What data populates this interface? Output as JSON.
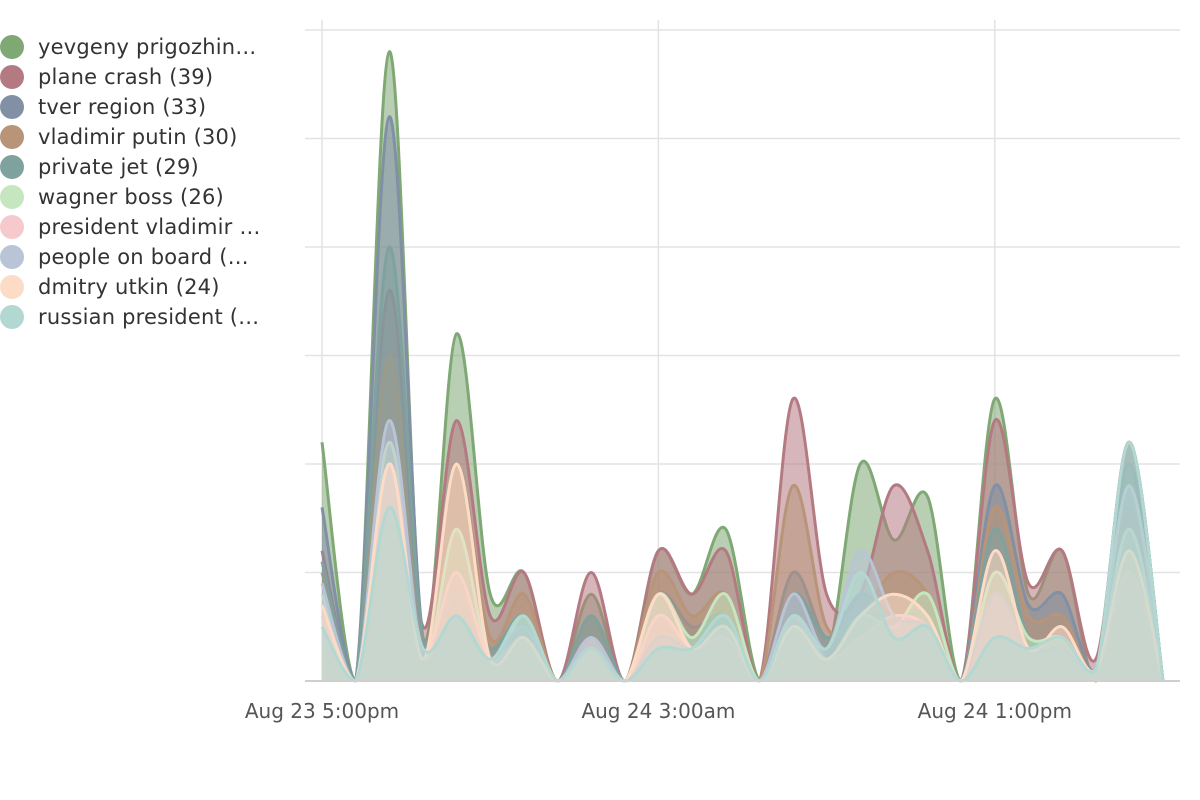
{
  "colors": {
    "grid": "#e3e3e3",
    "axis": "#cfcfcf",
    "text": "#333333",
    "tick_text": "#555555"
  },
  "chart_data": {
    "type": "area",
    "title": "",
    "xlabel": "",
    "ylabel": "",
    "x_tick_labels": [
      "Aug 23 5:00pm",
      "Aug 24 3:00am",
      "Aug 24 1:00pm"
    ],
    "x_tick_positions": [
      0,
      10,
      20
    ],
    "ylim": [
      0,
      6
    ],
    "grid": true,
    "legend_position": "left",
    "series": [
      {
        "name": "yevgeny prigozhin…",
        "color": "#7fa874",
        "values": [
          2.2,
          0,
          5.8,
          0.4,
          3.2,
          0.8,
          1.0,
          0,
          0.8,
          0,
          1.2,
          0.8,
          1.4,
          0,
          0.6,
          0.2,
          2.0,
          1.3,
          1.7,
          0,
          2.6,
          0.8,
          1.2,
          0,
          2.2,
          0
        ]
      },
      {
        "name": "plane crash (39)",
        "color": "#b47a82",
        "values": [
          1.2,
          0,
          3.6,
          0.5,
          2.4,
          0.6,
          1.0,
          0,
          1.0,
          0,
          1.2,
          0.8,
          1.2,
          0,
          2.6,
          0.8,
          0.8,
          1.8,
          1.2,
          0,
          2.4,
          0.9,
          1.2,
          0.2,
          2.2,
          0
        ]
      },
      {
        "name": "tver region (33)",
        "color": "#8190a4",
        "values": [
          1.6,
          0,
          5.2,
          0.4,
          1.0,
          0.3,
          0.6,
          0,
          0.6,
          0,
          0.8,
          0.5,
          0.6,
          0,
          1.0,
          0.4,
          0.8,
          0.6,
          0.6,
          0,
          1.8,
          0.7,
          0.8,
          0.1,
          2.0,
          0
        ]
      },
      {
        "name": "vladimir putin (30)",
        "color": "#b89478",
        "values": [
          1.0,
          0,
          3.0,
          0.3,
          2.0,
          0.4,
          0.8,
          0,
          0.6,
          0,
          1.0,
          0.6,
          0.8,
          0,
          1.8,
          0.5,
          0.6,
          1.0,
          0.8,
          0,
          1.6,
          0.6,
          0.6,
          0.1,
          1.6,
          0
        ]
      },
      {
        "name": "private jet (29)",
        "color": "#7fa29e",
        "values": [
          1.1,
          0,
          4.0,
          0.4,
          0.8,
          0.3,
          0.6,
          0,
          0.6,
          0,
          0.4,
          0.4,
          0.6,
          0,
          0.8,
          0.4,
          0.6,
          0.6,
          0.6,
          0,
          1.4,
          0.4,
          0.4,
          0.1,
          2.2,
          0
        ]
      },
      {
        "name": "wagner boss (26)",
        "color": "#c6e6c0",
        "values": [
          0.8,
          0,
          2.2,
          0.2,
          1.4,
          0.2,
          0.6,
          0,
          0.4,
          0,
          0.8,
          0.4,
          0.8,
          0,
          0.6,
          0.2,
          0.6,
          0.5,
          0.8,
          0,
          1.0,
          0.4,
          0.4,
          0.1,
          1.4,
          0
        ]
      },
      {
        "name": "president vladimir …",
        "color": "#f6c9cc",
        "values": [
          0.6,
          0,
          2.0,
          0.3,
          1.0,
          0.2,
          0.4,
          0,
          0.4,
          0,
          0.6,
          0.3,
          0.4,
          0,
          0.6,
          0.2,
          0.4,
          0.6,
          0.5,
          0,
          0.8,
          0.3,
          0.4,
          0.1,
          1.0,
          0
        ]
      },
      {
        "name": "people on board (…",
        "color": "#b9c4d6",
        "values": [
          0.9,
          0,
          2.4,
          0.2,
          0.6,
          0.2,
          0.5,
          0,
          0.4,
          0,
          0.4,
          0.3,
          0.5,
          0,
          0.8,
          0.3,
          1.2,
          0.6,
          0.5,
          0,
          0.8,
          0.3,
          0.3,
          0.1,
          1.8,
          0
        ]
      },
      {
        "name": "dmitry utkin (24)",
        "color": "#fcdcc7",
        "values": [
          0.7,
          0,
          2.0,
          0.2,
          2.0,
          0.2,
          0.4,
          0,
          0.3,
          0,
          0.8,
          0.3,
          0.5,
          0,
          0.5,
          0.2,
          0.6,
          0.8,
          0.6,
          0,
          1.2,
          0.3,
          0.5,
          0.1,
          1.2,
          0
        ]
      },
      {
        "name": "russian president (…",
        "color": "#b3d8d2",
        "values": [
          0.5,
          0,
          1.6,
          0.3,
          0.6,
          0.2,
          0.6,
          0,
          0.3,
          0,
          0.3,
          0.3,
          0.6,
          0,
          0.6,
          0.3,
          1.0,
          0.4,
          0.5,
          0,
          0.4,
          0.3,
          0.4,
          0.1,
          2.2,
          0
        ]
      }
    ]
  }
}
